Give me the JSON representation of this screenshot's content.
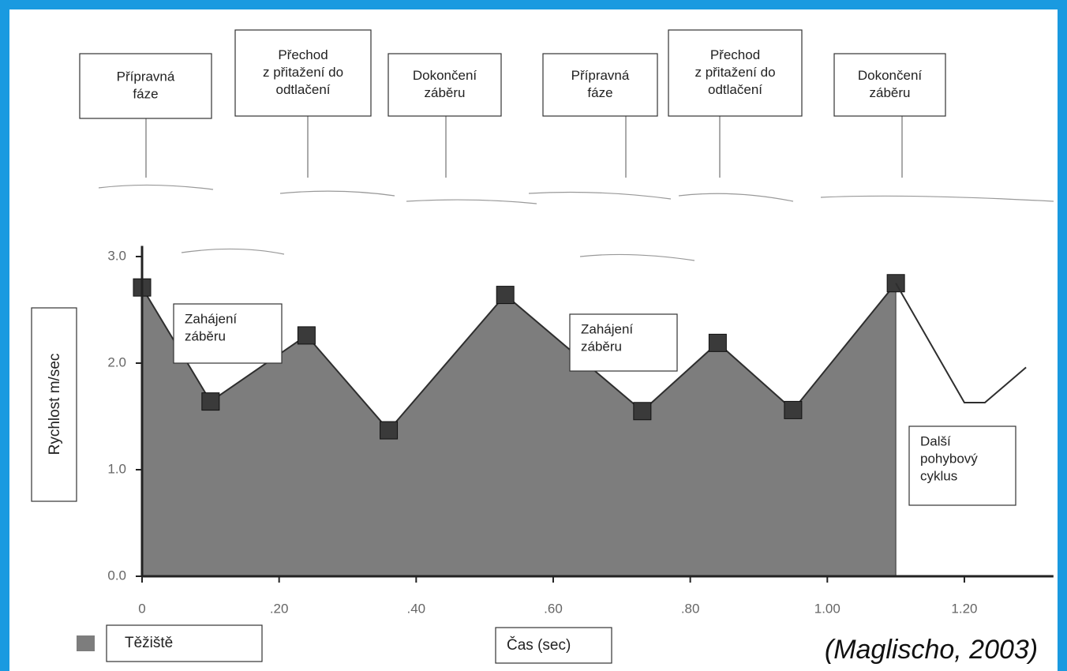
{
  "chart_data": {
    "type": "area",
    "y_label": "Rychlost m/sec",
    "x_label": "Čas (sec)",
    "source": "(Maglischo, 2003)",
    "legend_label": "Těžiště",
    "annotations": [
      [
        "Přípravná",
        "fáze"
      ],
      [
        "Přechod",
        "z přitažení do",
        "odtlačení"
      ],
      [
        "Dokončení",
        "záběru"
      ],
      [
        "Přípravná",
        "fáze"
      ],
      [
        "Přechod",
        "z přitažení do",
        "odtlačení"
      ],
      [
        "Dokončení",
        "záběru"
      ],
      [
        "Zahájení",
        "záběru"
      ],
      [
        "Zahájení",
        "záběru"
      ],
      [
        "Další",
        "pohybový",
        "cyklus"
      ]
    ],
    "series": [
      {
        "color": "#7d7d7d",
        "line_color": "#2e2e2e",
        "marker_color": "#3a3a3a",
        "filled": true,
        "markers": true,
        "x": [
          0,
          0.1,
          0.24,
          0.36,
          0.53,
          0.73,
          0.84,
          0.95,
          1.1
        ],
        "values": [
          2.71,
          1.64,
          2.26,
          1.37,
          2.64,
          1.55,
          2.19,
          1.56,
          2.75
        ]
      },
      {
        "line_color": "#2e2e2e",
        "filled": false,
        "markers": false,
        "x": [
          1.1,
          1.2,
          1.23,
          1.29
        ],
        "values": [
          2.75,
          1.63,
          1.63,
          1.96
        ]
      }
    ],
    "xlim": [
      0,
      1.33
    ],
    "ylim": [
      0,
      3.1
    ],
    "xticks": [
      0,
      {
        "value": 0.2,
        "label": ".20"
      },
      {
        "value": 0.4,
        "label": ".40"
      },
      {
        "value": 0.6,
        "label": ".60"
      },
      {
        "value": 0.8,
        "label": ".80"
      },
      {
        "value": 1.0,
        "label": "1.00"
      },
      {
        "value": 1.2,
        "label": "1.20"
      }
    ],
    "yticks": [
      {
        "value": 0,
        "label": "0.0"
      },
      {
        "value": 1,
        "label": "1.0"
      },
      {
        "value": 2,
        "label": "2.0"
      },
      {
        "value": 3,
        "label": "3.0"
      }
    ]
  }
}
